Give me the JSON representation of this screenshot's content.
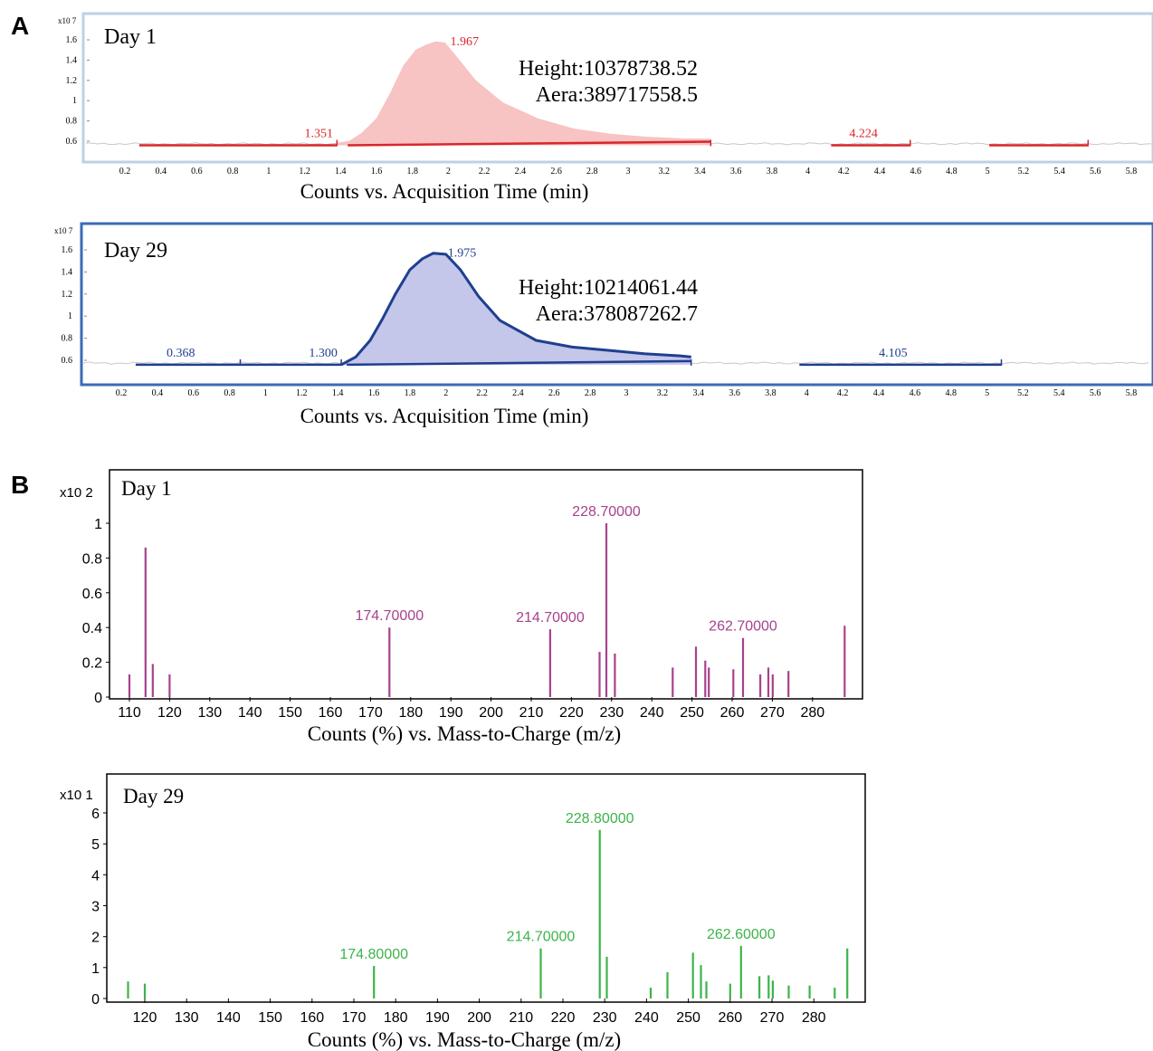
{
  "panel_labels": [
    "A",
    "B"
  ],
  "chart_data": [
    {
      "type": "area",
      "day_label": "Day 1",
      "xlabel": "Counts vs. Acquisition Time (min)",
      "y_exponent_label": "x10 7",
      "x_ticks": [
        "0.2",
        "0.4",
        "0.6",
        "0.8",
        "1",
        "1.2",
        "1.4",
        "1.6",
        "1.8",
        "2",
        "2.2",
        "2.4",
        "2.6",
        "2.8",
        "3",
        "3.2",
        "3.4",
        "3.6",
        "3.8",
        "4",
        "4.2",
        "4.4",
        "4.6",
        "4.8",
        "5",
        "5.2",
        "5.4",
        "5.6",
        "5.8"
      ],
      "y_ticks": [
        "0.6",
        "0.8",
        "1",
        "1.2",
        "1.4",
        "1.6"
      ],
      "xlim": [
        0.0,
        6.0
      ],
      "ylim": [
        0.4,
        1.7
      ],
      "color": "#d9262c",
      "fill": "#f7c3c3",
      "peak": {
        "rt_label": "1.967",
        "height_text": "Height:10378738.52",
        "area_text": "Aera:389717558.5"
      },
      "peak_trace": [
        [
          1.38,
          0.58
        ],
        [
          1.45,
          0.6
        ],
        [
          1.52,
          0.68
        ],
        [
          1.6,
          0.82
        ],
        [
          1.68,
          1.08
        ],
        [
          1.75,
          1.34
        ],
        [
          1.82,
          1.5
        ],
        [
          1.88,
          1.55
        ],
        [
          1.93,
          1.58
        ],
        [
          1.98,
          1.57
        ],
        [
          2.05,
          1.42
        ],
        [
          2.15,
          1.2
        ],
        [
          2.3,
          0.98
        ],
        [
          2.5,
          0.82
        ],
        [
          2.7,
          0.72
        ],
        [
          2.9,
          0.67
        ],
        [
          3.1,
          0.64
        ],
        [
          3.3,
          0.625
        ],
        [
          3.46,
          0.62
        ]
      ],
      "segments": [
        {
          "label": "",
          "x_start": 0.28,
          "x_end": 1.38
        },
        {
          "label": "1.351",
          "x_start": 1.38,
          "x_end": 1.38
        },
        {
          "label": "",
          "x_start": 1.44,
          "x_end": 3.46
        },
        {
          "label": "4.224",
          "x_start": 4.13,
          "x_end": 4.57
        },
        {
          "label": "",
          "x_start": 5.01,
          "x_end": 5.56
        }
      ]
    },
    {
      "type": "area",
      "day_label": "Day 29",
      "xlabel": "Counts vs. Acquisition Time (min)",
      "y_exponent_label": "x10 7",
      "x_ticks": [
        "0.2",
        "0.4",
        "0.6",
        "0.8",
        "1",
        "1.2",
        "1.4",
        "1.6",
        "1.8",
        "2",
        "2.2",
        "2.4",
        "2.6",
        "2.8",
        "3",
        "3.2",
        "3.4",
        "3.6",
        "3.8",
        "4",
        "4.2",
        "4.4",
        "4.6",
        "4.8",
        "5",
        "5.2",
        "5.4",
        "5.6",
        "5.8"
      ],
      "y_ticks": [
        "0.6",
        "0.8",
        "1",
        "1.2",
        "1.4",
        "1.6"
      ],
      "xlim": [
        0.0,
        6.0
      ],
      "ylim": [
        0.4,
        1.7
      ],
      "color": "#1f3f8f",
      "fill": "#c4c6ea",
      "peak": {
        "rt_label": "1.975",
        "height_text": "Height:10214061.44",
        "area_text": "Aera:378087262.7"
      },
      "peak_trace": [
        [
          1.42,
          0.56
        ],
        [
          1.5,
          0.63
        ],
        [
          1.58,
          0.78
        ],
        [
          1.65,
          0.98
        ],
        [
          1.72,
          1.2
        ],
        [
          1.8,
          1.42
        ],
        [
          1.87,
          1.52
        ],
        [
          1.93,
          1.57
        ],
        [
          2.0,
          1.56
        ],
        [
          2.08,
          1.42
        ],
        [
          2.18,
          1.18
        ],
        [
          2.3,
          0.96
        ],
        [
          2.5,
          0.78
        ],
        [
          2.7,
          0.72
        ],
        [
          2.9,
          0.69
        ],
        [
          3.1,
          0.66
        ],
        [
          3.3,
          0.64
        ],
        [
          3.36,
          0.63
        ]
      ],
      "segments": [
        {
          "label": "0.368",
          "x_start": 0.28,
          "x_end": 0.86
        },
        {
          "label": "",
          "x_start": 0.86,
          "x_end": 1.42
        },
        {
          "label": "1.300",
          "x_start": 1.42,
          "x_end": 1.42
        },
        {
          "label": "",
          "x_start": 1.45,
          "x_end": 3.36
        },
        {
          "label": "4.105",
          "x_start": 3.96,
          "x_end": 5.08
        }
      ]
    },
    {
      "type": "bar",
      "day_label": "Day 1",
      "xlabel": "Counts (%) vs. Mass-to-Charge (m/z)",
      "y_exponent_label": "x10 2",
      "x_ticks": [
        110,
        120,
        130,
        140,
        150,
        160,
        170,
        180,
        190,
        200,
        210,
        220,
        230,
        240,
        250,
        260,
        270,
        280
      ],
      "y_ticks": [
        "0",
        "0.2",
        "0.4",
        "0.6",
        "0.8",
        "1"
      ],
      "xlim": [
        106,
        290
      ],
      "ylim": [
        0,
        1.1
      ],
      "color": "#a8418c",
      "peaks": [
        {
          "mz": 110.0,
          "value": 0.13
        },
        {
          "mz": 114.0,
          "value": 0.86
        },
        {
          "mz": 115.8,
          "value": 0.19
        },
        {
          "mz": 120.0,
          "value": 0.13
        },
        {
          "mz": 174.7,
          "value": 0.4,
          "label": "174.70000"
        },
        {
          "mz": 214.7,
          "value": 0.39,
          "label": "214.70000"
        },
        {
          "mz": 227.0,
          "value": 0.26
        },
        {
          "mz": 228.7,
          "value": 1.0,
          "label": "228.70000"
        },
        {
          "mz": 230.8,
          "value": 0.25
        },
        {
          "mz": 245.2,
          "value": 0.17
        },
        {
          "mz": 251.0,
          "value": 0.29
        },
        {
          "mz": 253.3,
          "value": 0.21
        },
        {
          "mz": 254.2,
          "value": 0.17
        },
        {
          "mz": 260.3,
          "value": 0.16
        },
        {
          "mz": 262.7,
          "value": 0.34,
          "label": "262.70000"
        },
        {
          "mz": 267.0,
          "value": 0.13
        },
        {
          "mz": 269.0,
          "value": 0.17
        },
        {
          "mz": 270.1,
          "value": 0.13
        },
        {
          "mz": 274.0,
          "value": 0.15
        },
        {
          "mz": 288.0,
          "value": 0.41
        }
      ]
    },
    {
      "type": "bar",
      "day_label": "Day 29",
      "xlabel": "Counts (%) vs. Mass-to-Charge (m/z)",
      "y_exponent_label": "x10 1",
      "x_ticks": [
        120,
        130,
        140,
        150,
        160,
        170,
        180,
        190,
        200,
        210,
        220,
        230,
        240,
        250,
        260,
        270,
        280
      ],
      "y_ticks": [
        "0",
        "1",
        "2",
        "3",
        "4",
        "5",
        "6"
      ],
      "xlim": [
        112,
        291
      ],
      "ylim": [
        0,
        6.6
      ],
      "color": "#3cb44a",
      "peaks": [
        {
          "mz": 116.0,
          "value": 0.55
        },
        {
          "mz": 120.0,
          "value": 0.48
        },
        {
          "mz": 174.8,
          "value": 1.05,
          "label": "174.80000"
        },
        {
          "mz": 214.7,
          "value": 1.62,
          "label": "214.70000"
        },
        {
          "mz": 228.8,
          "value": 5.45,
          "label": "228.80000"
        },
        {
          "mz": 230.5,
          "value": 1.35
        },
        {
          "mz": 241.0,
          "value": 0.35
        },
        {
          "mz": 245.0,
          "value": 0.85
        },
        {
          "mz": 251.1,
          "value": 1.48
        },
        {
          "mz": 253.0,
          "value": 1.08
        },
        {
          "mz": 254.3,
          "value": 0.55
        },
        {
          "mz": 260.0,
          "value": 0.48
        },
        {
          "mz": 262.6,
          "value": 1.7,
          "label": "262.60000"
        },
        {
          "mz": 267.0,
          "value": 0.72
        },
        {
          "mz": 269.2,
          "value": 0.75
        },
        {
          "mz": 270.2,
          "value": 0.58
        },
        {
          "mz": 274.0,
          "value": 0.42
        },
        {
          "mz": 279.0,
          "value": 0.42
        },
        {
          "mz": 285.0,
          "value": 0.35
        },
        {
          "mz": 288.0,
          "value": 1.62
        }
      ]
    }
  ]
}
